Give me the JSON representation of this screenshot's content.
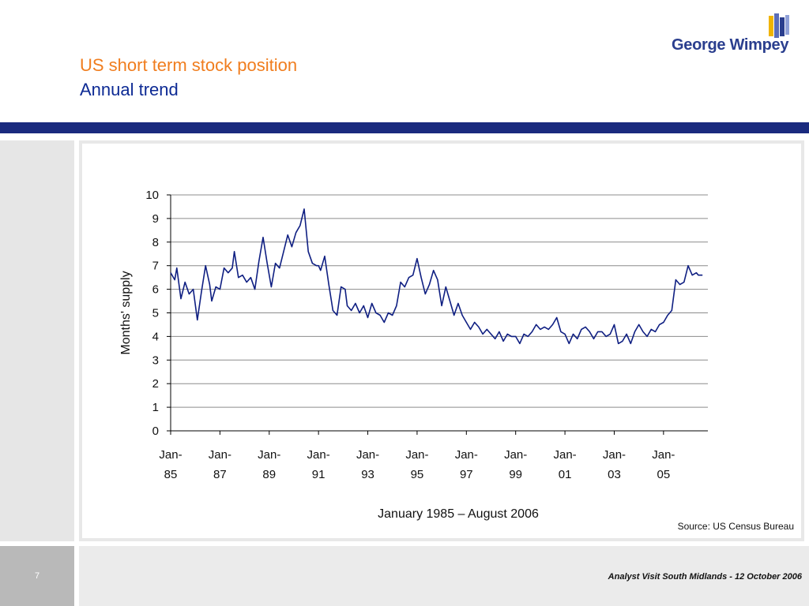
{
  "header": {
    "title": "US short term stock position",
    "subtitle": "Annual trend",
    "logo_text": "George Wimpey"
  },
  "colors": {
    "title": "#f07d1e",
    "subtitle": "#0d2a94",
    "bar": "#1a2a7e",
    "line": "#0f1f82"
  },
  "source": "Source: US Census Bureau",
  "footer": {
    "page_number": "7",
    "text": "Analyst Visit South Midlands - 12 October 2006"
  },
  "chart_data": {
    "type": "line",
    "title": "",
    "xlabel": "January 1985 – August 2006",
    "ylabel": "Months' supply",
    "ylim": [
      0,
      10
    ],
    "yticks": [
      0,
      1,
      2,
      3,
      4,
      5,
      6,
      7,
      8,
      9,
      10
    ],
    "x_ticks": [
      {
        "top": "Jan-",
        "bottom": "85",
        "year": 1985
      },
      {
        "top": "Jan-",
        "bottom": "87",
        "year": 1987
      },
      {
        "top": "Jan-",
        "bottom": "89",
        "year": 1989
      },
      {
        "top": "Jan-",
        "bottom": "91",
        "year": 1991
      },
      {
        "top": "Jan-",
        "bottom": "93",
        "year": 1993
      },
      {
        "top": "Jan-",
        "bottom": "95",
        "year": 1995
      },
      {
        "top": "Jan-",
        "bottom": "97",
        "year": 1997
      },
      {
        "top": "Jan-",
        "bottom": "99",
        "year": 1999
      },
      {
        "top": "Jan-",
        "bottom": "01",
        "year": 2001
      },
      {
        "top": "Jan-",
        "bottom": "03",
        "year": 2003
      },
      {
        "top": "Jan-",
        "bottom": "05",
        "year": 2005
      }
    ],
    "grid": true,
    "series": [
      {
        "x": [
          "1985-01",
          "1985-03",
          "1985-04",
          "1985-06",
          "1985-08",
          "1985-10",
          "1985-12",
          "1986-02",
          "1986-04",
          "1986-06",
          "1986-08",
          "1986-09",
          "1986-11",
          "1987-01",
          "1987-03",
          "1987-05",
          "1987-07",
          "1987-08",
          "1987-10",
          "1987-12",
          "1988-02",
          "1988-04",
          "1988-06",
          "1988-08",
          "1988-10",
          "1988-12",
          "1989-02",
          "1989-04",
          "1989-06",
          "1989-08",
          "1989-10",
          "1989-12",
          "1990-02",
          "1990-04",
          "1990-06",
          "1990-08",
          "1990-10",
          "1990-12",
          "1991-01",
          "1991-02",
          "1991-04",
          "1991-06",
          "1991-08",
          "1991-10",
          "1991-12",
          "1992-02",
          "1992-03",
          "1992-05",
          "1992-07",
          "1992-09",
          "1992-11",
          "1993-01",
          "1993-03",
          "1993-05",
          "1993-07",
          "1993-09",
          "1993-11",
          "1994-01",
          "1994-03",
          "1994-05",
          "1994-07",
          "1994-09",
          "1994-11",
          "1995-01",
          "1995-03",
          "1995-05",
          "1995-07",
          "1995-09",
          "1995-11",
          "1996-01",
          "1996-03",
          "1996-05",
          "1996-07",
          "1996-09",
          "1996-11",
          "1997-01",
          "1997-03",
          "1997-05",
          "1997-07",
          "1997-09",
          "1997-11",
          "1998-01",
          "1998-03",
          "1998-05",
          "1998-07",
          "1998-09",
          "1998-11",
          "1999-01",
          "1999-03",
          "1999-05",
          "1999-07",
          "1999-09",
          "1999-11",
          "2000-01",
          "2000-03",
          "2000-05",
          "2000-07",
          "2000-09",
          "2000-11",
          "2001-01",
          "2001-03",
          "2001-05",
          "2001-07",
          "2001-09",
          "2001-11",
          "2002-01",
          "2002-03",
          "2002-05",
          "2002-07",
          "2002-09",
          "2002-11",
          "2003-01",
          "2003-03",
          "2003-05",
          "2003-07",
          "2003-09",
          "2003-11",
          "2004-01",
          "2004-03",
          "2004-05",
          "2004-07",
          "2004-09",
          "2004-11",
          "2005-01",
          "2005-03",
          "2005-05",
          "2005-07",
          "2005-09",
          "2005-11",
          "2006-01",
          "2006-03",
          "2006-05",
          "2006-06",
          "2006-08"
        ],
        "values": [
          6.7,
          6.4,
          6.9,
          5.6,
          6.3,
          5.8,
          6.0,
          4.7,
          5.9,
          7.0,
          6.2,
          5.5,
          6.1,
          6.0,
          6.9,
          6.7,
          6.9,
          7.6,
          6.5,
          6.6,
          6.3,
          6.5,
          6.0,
          7.2,
          8.2,
          7.1,
          6.1,
          7.1,
          6.9,
          7.6,
          8.3,
          7.8,
          8.4,
          8.7,
          9.4,
          7.6,
          7.1,
          7.0,
          7.0,
          6.8,
          7.4,
          6.2,
          5.1,
          4.9,
          6.1,
          6.0,
          5.3,
          5.1,
          5.4,
          5.0,
          5.3,
          4.8,
          5.4,
          5.0,
          4.9,
          4.6,
          5.0,
          4.9,
          5.3,
          6.3,
          6.1,
          6.5,
          6.6,
          7.3,
          6.5,
          5.8,
          6.2,
          6.8,
          6.4,
          5.3,
          6.1,
          5.5,
          4.9,
          5.4,
          4.9,
          4.6,
          4.3,
          4.6,
          4.4,
          4.1,
          4.3,
          4.1,
          3.9,
          4.2,
          3.8,
          4.1,
          4.0,
          4.0,
          3.7,
          4.1,
          4.0,
          4.2,
          4.5,
          4.3,
          4.4,
          4.3,
          4.5,
          4.8,
          4.2,
          4.1,
          3.7,
          4.1,
          3.9,
          4.3,
          4.4,
          4.2,
          3.9,
          4.2,
          4.2,
          4.0,
          4.1,
          4.5,
          3.7,
          3.8,
          4.1,
          3.7,
          4.2,
          4.5,
          4.2,
          4.0,
          4.3,
          4.2,
          4.5,
          4.6,
          4.9,
          5.1,
          6.4,
          6.2,
          6.3,
          7.0,
          6.6,
          6.7,
          6.6,
          6.6
        ]
      }
    ]
  }
}
